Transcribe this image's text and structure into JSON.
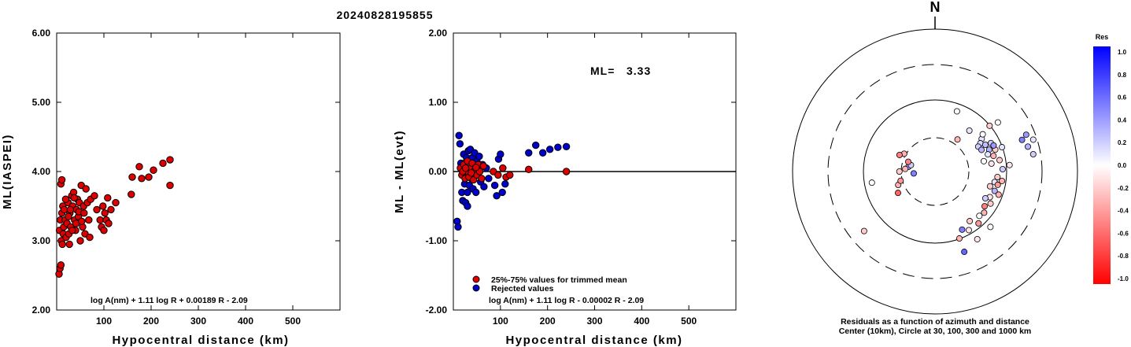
{
  "title": "20240828195855",
  "charts": [
    {
      "type": "scatter",
      "xlabel": "Hypocentral distance (km)",
      "ylabel": "ML(IASPEI)",
      "xlim": [
        0,
        600
      ],
      "ylim": [
        2.0,
        6.0
      ],
      "x_ticks": [
        "100",
        "200",
        "300",
        "400",
        "500"
      ],
      "y_ticks": [
        "2.00",
        "3.00",
        "4.00",
        "5.00",
        "6.00"
      ],
      "formula": "log A(nm) + 1.11 log R + 0.00189 R - 2.09",
      "point_color": "#dd0000",
      "points": [
        [
          5,
          2.52
        ],
        [
          7,
          2.6
        ],
        [
          9,
          2.65
        ],
        [
          6,
          3.15
        ],
        [
          8,
          3.3
        ],
        [
          10,
          3.0
        ],
        [
          12,
          2.95
        ],
        [
          14,
          3.1
        ],
        [
          11,
          3.4
        ],
        [
          13,
          3.5
        ],
        [
          15,
          3.2
        ],
        [
          9,
          3.82
        ],
        [
          11,
          3.88
        ],
        [
          16,
          3.45
        ],
        [
          18,
          3.3
        ],
        [
          20,
          3.05
        ],
        [
          22,
          3.25
        ],
        [
          24,
          3.55
        ],
        [
          19,
          3.6
        ],
        [
          26,
          3.1
        ],
        [
          28,
          3.4
        ],
        [
          30,
          3.2
        ],
        [
          27,
          2.95
        ],
        [
          32,
          3.65
        ],
        [
          34,
          3.5
        ],
        [
          36,
          3.7
        ],
        [
          38,
          3.3
        ],
        [
          40,
          3.15
        ],
        [
          42,
          3.45
        ],
        [
          44,
          3.6
        ],
        [
          46,
          3.35
        ],
        [
          48,
          3.55
        ],
        [
          50,
          3.0
        ],
        [
          52,
          3.8
        ],
        [
          55,
          3.2
        ],
        [
          57,
          3.5
        ],
        [
          60,
          3.1
        ],
        [
          62,
          3.75
        ],
        [
          65,
          3.55
        ],
        [
          68,
          3.3
        ],
        [
          70,
          3.05
        ],
        [
          72,
          3.6
        ],
        [
          25,
          3.35
        ],
        [
          29,
          3.45
        ],
        [
          33,
          3.15
        ],
        [
          37,
          3.62
        ],
        [
          41,
          3.25
        ],
        [
          47,
          3.42
        ],
        [
          53,
          3.28
        ],
        [
          58,
          3.4
        ],
        [
          80,
          3.65
        ],
        [
          85,
          3.45
        ],
        [
          92,
          3.3
        ],
        [
          95,
          3.2
        ],
        [
          98,
          3.5
        ],
        [
          100,
          3.15
        ],
        [
          102,
          3.4
        ],
        [
          105,
          3.3
        ],
        [
          108,
          3.62
        ],
        [
          110,
          3.25
        ],
        [
          115,
          3.45
        ],
        [
          125,
          3.55
        ],
        [
          158,
          3.67
        ],
        [
          160,
          3.92
        ],
        [
          175,
          4.07
        ],
        [
          180,
          3.9
        ],
        [
          195,
          3.92
        ],
        [
          205,
          4.02
        ],
        [
          225,
          4.12
        ],
        [
          240,
          4.17
        ],
        [
          240,
          3.8
        ]
      ]
    },
    {
      "type": "scatter",
      "xlabel": "Hypocentral distance (km)",
      "ylabel": "ML - ML(evt)",
      "xlim": [
        0,
        600
      ],
      "ylim": [
        -2.0,
        2.0
      ],
      "x_ticks": [
        "100",
        "200",
        "300",
        "400",
        "500"
      ],
      "y_ticks": [
        "-2.00",
        "-1.00",
        "0.00",
        "1.00",
        "2.00"
      ],
      "ml_label": "ML=",
      "ml_value": "3.33",
      "formula": "log A(nm) + 1.11 log R - 0.00002 R - 2.09",
      "legend": [
        {
          "label": "25%-75% values for trimmed mean",
          "color": "#dd0000"
        },
        {
          "label": "Rejected values",
          "color": "#0000cc"
        }
      ],
      "trimmed_points": [
        [
          15,
          0.05
        ],
        [
          18,
          -0.05
        ],
        [
          22,
          0.1
        ],
        [
          25,
          -0.1
        ],
        [
          28,
          0.0
        ],
        [
          30,
          0.15
        ],
        [
          33,
          -0.08
        ],
        [
          36,
          0.05
        ],
        [
          40,
          0.12
        ],
        [
          43,
          -0.12
        ],
        [
          46,
          0.02
        ],
        [
          50,
          -0.05
        ],
        [
          53,
          0.1
        ],
        [
          56,
          0.0
        ],
        [
          60,
          -0.1
        ],
        [
          64,
          0.08
        ],
        [
          20,
          0.0
        ],
        [
          26,
          0.05
        ],
        [
          38,
          -0.02
        ],
        [
          48,
          0.06
        ],
        [
          85,
          0.0
        ],
        [
          95,
          -0.05
        ],
        [
          105,
          0.05
        ],
        [
          112,
          -0.08
        ],
        [
          120,
          -0.05
        ],
        [
          160,
          0.03
        ],
        [
          240,
          0.0
        ]
      ],
      "rejected_points": [
        [
          8,
          -0.72
        ],
        [
          10,
          -0.8
        ],
        [
          12,
          0.52
        ],
        [
          14,
          0.4
        ],
        [
          16,
          0.12
        ],
        [
          18,
          -0.3
        ],
        [
          20,
          -0.42
        ],
        [
          22,
          0.25
        ],
        [
          24,
          -0.18
        ],
        [
          26,
          -0.45
        ],
        [
          28,
          0.2
        ],
        [
          30,
          -0.3
        ],
        [
          32,
          0.3
        ],
        [
          34,
          -0.2
        ],
        [
          36,
          0.32
        ],
        [
          38,
          -0.1
        ],
        [
          40,
          0.2
        ],
        [
          42,
          -0.25
        ],
        [
          45,
          0.27
        ],
        [
          48,
          -0.3
        ],
        [
          50,
          0.15
        ],
        [
          55,
          0.22
        ],
        [
          58,
          -0.15
        ],
        [
          62,
          0.1
        ],
        [
          65,
          -0.22
        ],
        [
          70,
          0.05
        ],
        [
          75,
          -0.1
        ],
        [
          88,
          -0.2
        ],
        [
          92,
          -0.35
        ],
        [
          96,
          0.18
        ],
        [
          100,
          0.25
        ],
        [
          104,
          -0.3
        ],
        [
          110,
          -0.18
        ],
        [
          160,
          0.27
        ],
        [
          175,
          0.38
        ],
        [
          190,
          0.27
        ],
        [
          205,
          0.32
        ],
        [
          222,
          0.35
        ],
        [
          240,
          0.36
        ],
        [
          20,
          -0.05
        ],
        [
          24,
          0.12
        ],
        [
          30,
          -0.5
        ],
        [
          46,
          0.05
        ]
      ]
    }
  ],
  "polar": {
    "north_label": "N",
    "caption_line1": "Residuals as a function of azimuth and distance",
    "caption_line2": "Center (10km), Circle at 30, 100, 300 and 1000 km",
    "circles_km": [
      30,
      100,
      300,
      1000
    ],
    "colorbar": {
      "title": "Res",
      "ticks": [
        "1.0",
        "0.8",
        "0.6",
        "0.4",
        "0.2",
        "0.0",
        "-0.2",
        "-0.4",
        "-0.6",
        "-0.8",
        "-1.0"
      ],
      "max_color": "#0000ff",
      "min_color": "#ff0000"
    },
    "points": [
      [
        55,
        0.8,
        0.1
      ],
      [
        52,
        0.85,
        0.0
      ],
      [
        58,
        0.75,
        0.15
      ],
      [
        60,
        0.7,
        0.2
      ],
      [
        62,
        0.8,
        0.25
      ],
      [
        65,
        0.72,
        0.3
      ],
      [
        63,
        0.88,
        0.2
      ],
      [
        68,
        0.82,
        0.3
      ],
      [
        72,
        0.78,
        0.1
      ],
      [
        70,
        0.9,
        -0.2
      ],
      [
        75,
        0.85,
        -0.3
      ],
      [
        80,
        0.92,
        -0.2
      ],
      [
        82,
        0.8,
        -0.1
      ],
      [
        66,
        0.9,
        0.4
      ],
      [
        78,
        0.7,
        0.0
      ],
      [
        70,
        1.0,
        0.1
      ],
      [
        85,
        1.05,
        -0.1
      ],
      [
        88,
        0.95,
        0.2
      ],
      [
        95,
        0.88,
        -0.2
      ],
      [
        98,
        0.95,
        -0.3
      ],
      [
        100,
        0.85,
        0.1
      ],
      [
        102,
        0.9,
        -0.4
      ],
      [
        105,
        0.8,
        -0.2
      ],
      [
        108,
        0.88,
        0.3
      ],
      [
        110,
        0.95,
        -0.3
      ],
      [
        115,
        0.85,
        -0.1
      ],
      [
        118,
        0.8,
        0.2
      ],
      [
        120,
        0.9,
        -0.2
      ],
      [
        125,
        0.85,
        -0.5
      ],
      [
        130,
        0.9,
        -0.3
      ],
      [
        135,
        0.88,
        0.0
      ],
      [
        140,
        0.95,
        -0.4
      ],
      [
        145,
        0.85,
        -0.2
      ],
      [
        150,
        0.95,
        -0.1
      ],
      [
        155,
        0.9,
        0.5
      ],
      [
        160,
        1.0,
        -0.3
      ],
      [
        135,
        1.1,
        0.0
      ],
      [
        148,
        1.12,
        -0.1
      ],
      [
        160,
        1.2,
        0.6
      ],
      [
        70,
        1.3,
        0.5
      ],
      [
        68,
        1.38,
        0.4
      ],
      [
        75,
        1.35,
        0.3
      ],
      [
        80,
        1.4,
        0.2
      ],
      [
        72,
        1.45,
        0.1
      ],
      [
        52,
        1.12,
        0.0
      ],
      [
        50,
        1.0,
        -0.2
      ],
      [
        40,
        0.75,
        0.1
      ],
      [
        35,
        0.55,
        -0.3
      ],
      [
        280,
        0.38,
        0.4
      ],
      [
        275,
        0.42,
        -0.3
      ],
      [
        285,
        0.35,
        0.2
      ],
      [
        290,
        0.4,
        -0.5
      ],
      [
        300,
        0.5,
        -0.3
      ],
      [
        265,
        0.3,
        0.5
      ],
      [
        270,
        0.5,
        -0.2
      ],
      [
        250,
        0.55,
        -0.3
      ],
      [
        255,
        0.5,
        -0.4
      ],
      [
        240,
        0.6,
        -0.6
      ],
      [
        295,
        0.55,
        -0.5
      ],
      [
        230,
        1.3,
        -0.2
      ],
      [
        20,
        0.9,
        0.0
      ],
      [
        260,
        0.9,
        0.0
      ]
    ]
  }
}
